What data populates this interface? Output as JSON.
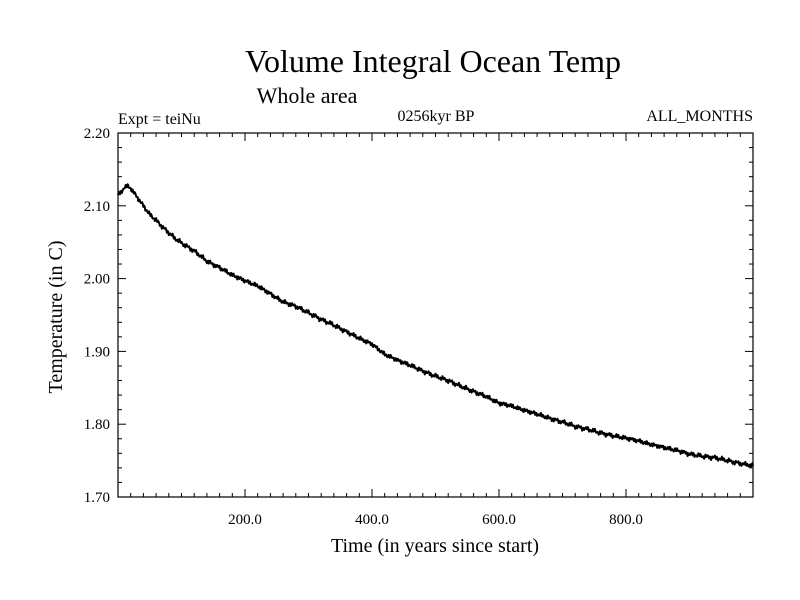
{
  "chart_data": {
    "type": "line",
    "title": "Volume Integral Ocean Temp",
    "subtitle": "Whole area",
    "experiment_label": "Expt = teiNu",
    "period_label": "0256kyr BP",
    "months_label": "ALL_MONTHS",
    "xlabel": "Time (in years since start)",
    "ylabel": "Temperature (in C)",
    "xlim": [
      0,
      1000
    ],
    "ylim": [
      1.7,
      2.2
    ],
    "xticks": [
      200,
      400,
      600,
      800
    ],
    "xtick_labels": [
      "200.0",
      "400.0",
      "600.0",
      "800.0"
    ],
    "yticks": [
      1.7,
      1.8,
      1.9,
      2.0,
      2.1,
      2.2
    ],
    "ytick_labels": [
      "1.70",
      "1.80",
      "1.90",
      "2.00",
      "2.10",
      "2.20"
    ],
    "grid": false,
    "series": [
      {
        "name": "Volume integral ocean temperature",
        "color": "#000000",
        "x": [
          0,
          5,
          10,
          15,
          20,
          30,
          40,
          50,
          60,
          70,
          80,
          90,
          100,
          120,
          140,
          160,
          180,
          200,
          220,
          240,
          260,
          280,
          300,
          320,
          340,
          360,
          380,
          400,
          420,
          440,
          460,
          480,
          500,
          520,
          540,
          560,
          580,
          600,
          620,
          640,
          660,
          680,
          700,
          720,
          740,
          760,
          780,
          800,
          820,
          840,
          860,
          880,
          900,
          920,
          940,
          960,
          980,
          1000
        ],
        "y": [
          2.115,
          2.118,
          2.126,
          2.127,
          2.124,
          2.112,
          2.1,
          2.088,
          2.08,
          2.071,
          2.063,
          2.055,
          2.049,
          2.038,
          2.024,
          2.015,
          2.005,
          1.997,
          1.99,
          1.979,
          1.968,
          1.962,
          1.953,
          1.944,
          1.936,
          1.927,
          1.918,
          1.91,
          1.896,
          1.888,
          1.881,
          1.873,
          1.866,
          1.86,
          1.852,
          1.845,
          1.838,
          1.829,
          1.825,
          1.819,
          1.814,
          1.808,
          1.803,
          1.797,
          1.793,
          1.788,
          1.784,
          1.781,
          1.777,
          1.772,
          1.768,
          1.764,
          1.759,
          1.756,
          1.754,
          1.75,
          1.746,
          1.743
        ]
      }
    ]
  }
}
